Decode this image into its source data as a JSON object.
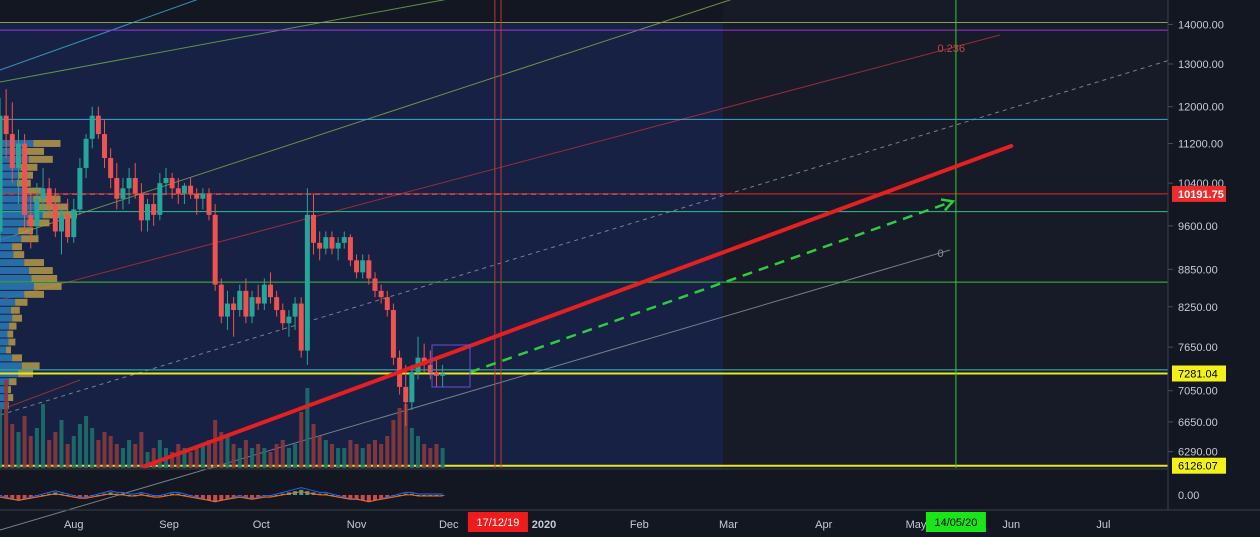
{
  "chart_data": {
    "type": "candlestick",
    "price_axis": {
      "scale": "log",
      "ticks": [
        "14000.00",
        "13000.00",
        "12000.00",
        "11200.00",
        "10400.00",
        "9600.00",
        "8850.00",
        "8250.00",
        "7650.00",
        "7050.00",
        "6650.00",
        "6290.00"
      ],
      "tick_values": [
        14000,
        13000,
        12000,
        11200,
        10400,
        9600,
        8850,
        8250,
        7650,
        7050,
        6650,
        6290
      ],
      "range": [
        6100,
        14600
      ]
    },
    "time_axis": {
      "labels": [
        "Aug",
        "Sep",
        "Oct",
        "Nov",
        "Dec",
        "2020",
        "Feb",
        "Mar",
        "Apr",
        "May",
        "Jun",
        "Jul"
      ],
      "label_dates": [
        "2019-08-01",
        "2019-09-01",
        "2019-10-01",
        "2019-11-01",
        "2019-12-01",
        "2020-01-01",
        "2020-02-01",
        "2020-03-01",
        "2020-04-01",
        "2020-05-01",
        "2020-06-01",
        "2020-07-01"
      ],
      "range": [
        "2019-07-08",
        "2020-07-22"
      ]
    },
    "price_labels": [
      {
        "text": "10191.75",
        "price": 10191.75,
        "color": "#ef2b2b",
        "text_color": "#ffffff"
      },
      {
        "text": "7281.04",
        "price": 7281.04,
        "color": "#f2f21a",
        "text_color": "#000000"
      },
      {
        "text": "6126.07",
        "price": 6126.07,
        "color": "#f2f21a",
        "text_color": "#000000"
      }
    ],
    "date_labels": [
      {
        "text": "17/12/19",
        "date": "2019-12-17",
        "color": "#ef1c1c",
        "text_color": "#ffffff"
      },
      {
        "text": "14/05/20",
        "date": "2020-05-14",
        "color": "#19e619",
        "text_color": "#000000"
      }
    ],
    "fib_labels": [
      {
        "text": "0.236",
        "date": "2020-05-08",
        "price": 13300
      },
      {
        "text": "0",
        "date": "2020-05-08",
        "price": 9060
      }
    ],
    "indicator_axis": {
      "ticks": [
        "0.00"
      ]
    },
    "trendline": {
      "type": "solid",
      "color": "#e52020",
      "start": {
        "date": "2019-08-24",
        "price": 6120
      },
      "end": {
        "date": "2020-06-01",
        "price": 11150
      }
    },
    "projection": {
      "type": "dashed-arrow",
      "color": "#2ecc40",
      "start": {
        "date": "2019-12-08",
        "price": 7300
      },
      "end": {
        "date": "2020-05-13",
        "price": 10050
      }
    },
    "horizontal_lines": [
      {
        "price": 14050,
        "color": "#8c9d52"
      },
      {
        "price": 13850,
        "color": "#9a37d8"
      },
      {
        "price": 11720,
        "color": "#3aa9d4"
      },
      {
        "price": 10191.75,
        "color": "#e52a2a"
      },
      {
        "price": 9860,
        "color": "#2bc48a"
      },
      {
        "price": 8640,
        "color": "#3fbf3f"
      },
      {
        "price": 7330,
        "color": "#2bc4c4"
      },
      {
        "price": 7281.04,
        "color": "#e8e817"
      },
      {
        "price": 6126.07,
        "color": "#e8e817"
      }
    ],
    "vertical_lines": [
      {
        "date": "2019-12-16",
        "color": "#c8323c"
      },
      {
        "date": "2019-12-18",
        "color": "#c8323c"
      },
      {
        "date": "2020-05-14",
        "color": "#33cc33"
      }
    ],
    "candles_ohlc": [
      [
        9500,
        12200,
        9300,
        11800
      ],
      [
        11800,
        12400,
        10900,
        11400
      ],
      [
        11400,
        12100,
        10400,
        10700
      ],
      [
        10700,
        11500,
        10000,
        11200
      ],
      [
        11200,
        11400,
        9500,
        9800
      ],
      [
        9800,
        10200,
        9200,
        9600
      ],
      [
        9600,
        10400,
        9400,
        10100
      ],
      [
        10100,
        10700,
        9800,
        10300
      ],
      [
        10300,
        10500,
        9800,
        10000
      ],
      [
        10000,
        10300,
        9400,
        9500
      ],
      [
        9500,
        9900,
        9100,
        9800
      ],
      [
        9800,
        10100,
        9300,
        9400
      ],
      [
        9400,
        10100,
        9300,
        9900
      ],
      [
        9900,
        10900,
        9800,
        10700
      ],
      [
        10700,
        11400,
        10500,
        11300
      ],
      [
        11300,
        12000,
        11100,
        11800
      ],
      [
        11800,
        12000,
        11300,
        11400
      ],
      [
        11400,
        11700,
        10700,
        10900
      ],
      [
        10900,
        11100,
        10300,
        10500
      ],
      [
        10500,
        10800,
        9900,
        10100
      ],
      [
        10100,
        10500,
        9900,
        10300
      ],
      [
        10300,
        10700,
        10000,
        10500
      ],
      [
        10500,
        10800,
        10100,
        10200
      ],
      [
        10200,
        10400,
        9500,
        9700
      ],
      [
        9700,
        10100,
        9500,
        10000
      ],
      [
        10000,
        10200,
        9600,
        9800
      ],
      [
        9800,
        10600,
        9700,
        10400
      ],
      [
        10400,
        10700,
        10200,
        10500
      ],
      [
        10500,
        10600,
        10100,
        10300
      ],
      [
        10300,
        10500,
        10000,
        10200
      ],
      [
        10200,
        10400,
        10000,
        10350
      ],
      [
        10350,
        10500,
        10100,
        10200
      ],
      [
        10200,
        10300,
        9800,
        10100
      ],
      [
        10100,
        10300,
        9900,
        10200
      ],
      [
        10200,
        10300,
        9700,
        9800
      ],
      [
        9800,
        10000,
        8500,
        8600
      ],
      [
        8600,
        8700,
        8000,
        8100
      ],
      [
        8100,
        8500,
        7900,
        8300
      ],
      [
        8300,
        8400,
        7800,
        8200
      ],
      [
        8200,
        8600,
        8100,
        8500
      ],
      [
        8500,
        8700,
        8000,
        8100
      ],
      [
        8100,
        8500,
        8000,
        8400
      ],
      [
        8400,
        8600,
        8200,
        8300
      ],
      [
        8300,
        8700,
        8200,
        8600
      ],
      [
        8600,
        8800,
        8300,
        8400
      ],
      [
        8400,
        8500,
        8100,
        8200
      ],
      [
        8200,
        8300,
        7900,
        8000
      ],
      [
        8000,
        8200,
        7800,
        8100
      ],
      [
        8100,
        8400,
        7900,
        8300
      ],
      [
        8300,
        8400,
        7500,
        7600
      ],
      [
        7600,
        10300,
        7400,
        9800
      ],
      [
        9800,
        10200,
        9100,
        9300
      ],
      [
        9300,
        9500,
        9000,
        9200
      ],
      [
        9200,
        9500,
        9100,
        9400
      ],
      [
        9400,
        9500,
        9100,
        9200
      ],
      [
        9200,
        9400,
        9000,
        9300
      ],
      [
        9300,
        9500,
        9200,
        9400
      ],
      [
        9400,
        9450,
        8900,
        9000
      ],
      [
        9000,
        9100,
        8700,
        8800
      ],
      [
        8800,
        9100,
        8700,
        9000
      ],
      [
        9000,
        9100,
        8600,
        8700
      ],
      [
        8700,
        8800,
        8400,
        8500
      ],
      [
        8500,
        8600,
        8300,
        8400
      ],
      [
        8400,
        8500,
        8100,
        8200
      ],
      [
        8200,
        8300,
        7400,
        7500
      ],
      [
        7500,
        7600,
        7000,
        7100
      ],
      [
        7100,
        7400,
        6600,
        6900
      ],
      [
        6900,
        7400,
        6800,
        7300
      ],
      [
        7300,
        7800,
        7200,
        7500
      ],
      [
        7500,
        7700,
        7300,
        7400
      ],
      [
        7400,
        7600,
        7200,
        7300
      ],
      [
        7300,
        7500,
        7100,
        7250
      ],
      [
        7250,
        7400,
        7100,
        7281
      ]
    ],
    "volume": [
      1.5,
      2.2,
      1.1,
      0.9,
      1.3,
      0.8,
      1.0,
      1.6,
      0.7,
      0.9,
      1.2,
      0.6,
      0.8,
      1.1,
      1.3,
      1.0,
      0.7,
      0.9,
      0.8,
      0.6,
      0.5,
      0.7,
      0.6,
      0.9,
      0.4,
      0.5,
      0.7,
      0.5,
      0.4,
      0.6,
      0.5,
      0.4,
      0.5,
      0.6,
      0.7,
      1.2,
      0.9,
      0.8,
      0.6,
      0.5,
      0.7,
      0.5,
      0.6,
      0.5,
      0.4,
      0.6,
      0.7,
      0.5,
      0.6,
      1.4,
      2.0,
      1.1,
      0.8,
      0.7,
      0.6,
      0.5,
      0.5,
      0.7,
      0.6,
      0.5,
      0.6,
      0.7,
      0.6,
      0.8,
      1.2,
      1.5,
      1.6,
      1.0,
      0.8,
      0.6,
      0.5,
      0.6,
      0.5
    ],
    "volume_profile": [
      0.55,
      0.4,
      0.48,
      0.34,
      0.3,
      0.28,
      0.38,
      0.55,
      0.62,
      0.7,
      0.45,
      0.3,
      0.35,
      0.2,
      0.22,
      0.4,
      0.48,
      0.52,
      0.56,
      0.4,
      0.25,
      0.18,
      0.2,
      0.15,
      0.12,
      0.14,
      0.1,
      0.2,
      0.36,
      0.3,
      0.15,
      0.1,
      0.12,
      0.08
    ],
    "histogram": [
      -1,
      -2,
      -3,
      -4,
      -3,
      -2,
      -1,
      0,
      1,
      2,
      1,
      0,
      -1,
      -2,
      -2,
      -1,
      0,
      1,
      2,
      1,
      1,
      0,
      0,
      1,
      0,
      -1,
      -1,
      0,
      1,
      1,
      0,
      -1,
      -2,
      -3,
      -4,
      -5,
      -4,
      -3,
      -2,
      -1,
      -2,
      -3,
      -2,
      -1,
      -1,
      0,
      1,
      2,
      3,
      4,
      3,
      2,
      1,
      1,
      0,
      -1,
      -2,
      -3,
      -3,
      -4,
      -5,
      -4,
      -3,
      -2,
      -1,
      0,
      1,
      1,
      0,
      0,
      0,
      0,
      0
    ],
    "colors": {
      "background": "#131722",
      "up": "#26a69a",
      "down": "#ef5350",
      "up_volume": "#1f6f6b",
      "down_volume": "#8a3a3d",
      "axis_text": "#c7cad3",
      "highlight_zone": "#1b2a5e",
      "profile_up": "#2a7ab8",
      "profile_down": "#b59a4a"
    }
  }
}
